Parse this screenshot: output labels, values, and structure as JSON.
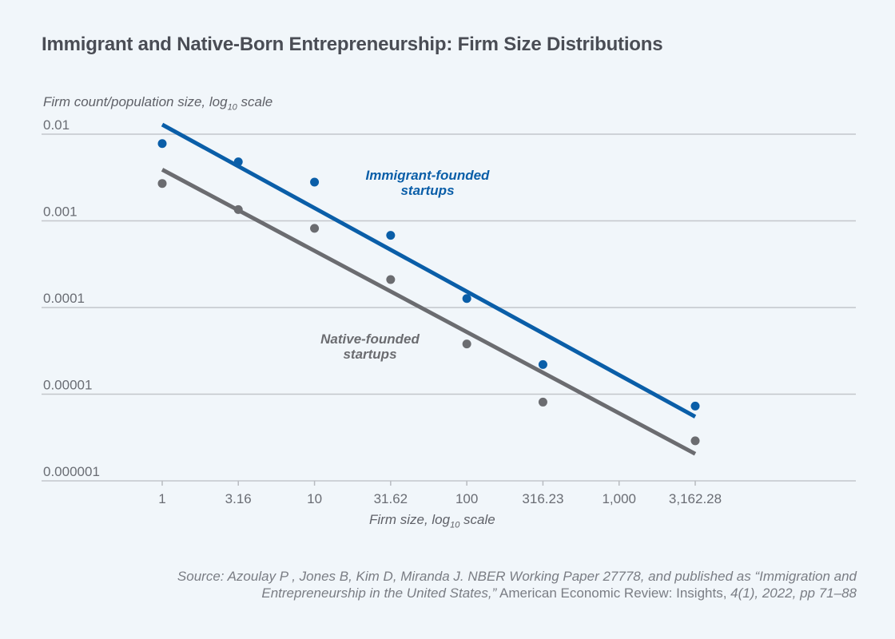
{
  "chart_data": {
    "type": "scatter",
    "title": "Immigrant and Native-Born Entrepreneurship: Firm Size Distributions",
    "ylabel": {
      "text": "Firm count/population size, log",
      "sub": "10",
      "suffix": " scale"
    },
    "xlabel": {
      "text": "Firm size, log",
      "sub": "10",
      "suffix": " scale"
    },
    "xscale": "log10",
    "yscale": "log10",
    "xlim": [
      1,
      3162.28
    ],
    "ylim": [
      1e-06,
      0.01
    ],
    "x_ticks": [
      1,
      3.16,
      10,
      31.62,
      100,
      316.23,
      1000,
      3162.28
    ],
    "x_tick_labels": [
      "1",
      "3.16",
      "10",
      "31.62",
      "100",
      "316.23",
      "1,000",
      "3,162.28"
    ],
    "y_ticks": [
      0.01,
      0.001,
      0.0001,
      1e-05,
      1e-06
    ],
    "y_tick_labels": [
      "0.01",
      "0.001",
      "0.0001",
      "0.00001",
      "0.000001"
    ],
    "grid": "horizontal",
    "series": [
      {
        "name": "Immigrant-founded startups",
        "color": "#0a5ea8",
        "points": [
          {
            "x": 1,
            "y": 0.0078
          },
          {
            "x": 3.16,
            "y": 0.0048
          },
          {
            "x": 10,
            "y": 0.0028
          },
          {
            "x": 31.62,
            "y": 0.00068
          },
          {
            "x": 100,
            "y": 0.000127
          },
          {
            "x": 316.23,
            "y": 2.2e-05
          },
          {
            "x": 3162.28,
            "y": 7.3e-06
          }
        ],
        "fit_line": {
          "x": [
            1,
            3162.28
          ],
          "y": [
            0.0129,
            5.5e-06
          ]
        },
        "label_lines": [
          "Immigrant-founded",
          "startups"
        ]
      },
      {
        "name": "Native-founded startups",
        "color": "#6b6c70",
        "points": [
          {
            "x": 1,
            "y": 0.0027
          },
          {
            "x": 3.16,
            "y": 0.00135
          },
          {
            "x": 10,
            "y": 0.00082
          },
          {
            "x": 31.62,
            "y": 0.00021
          },
          {
            "x": 100,
            "y": 3.8e-05
          },
          {
            "x": 316.23,
            "y": 8.1e-06
          },
          {
            "x": 3162.28,
            "y": 2.9e-06
          }
        ],
        "fit_line": {
          "x": [
            1,
            3162.28
          ],
          "y": [
            0.0039,
            2.05e-06
          ]
        },
        "label_lines": [
          "Native-founded",
          "startups"
        ]
      }
    ]
  },
  "source": {
    "prefix_italic": "Source: Azoulay P , Jones B, Kim D, Miranda J. NBER Working Paper 27778, and published as “Immigration and Entrepreneurship in the United States,”",
    "journal": " American Economic Review: Insights,",
    "suffix_italic": " 4(1), 2022, pp 71–88"
  }
}
